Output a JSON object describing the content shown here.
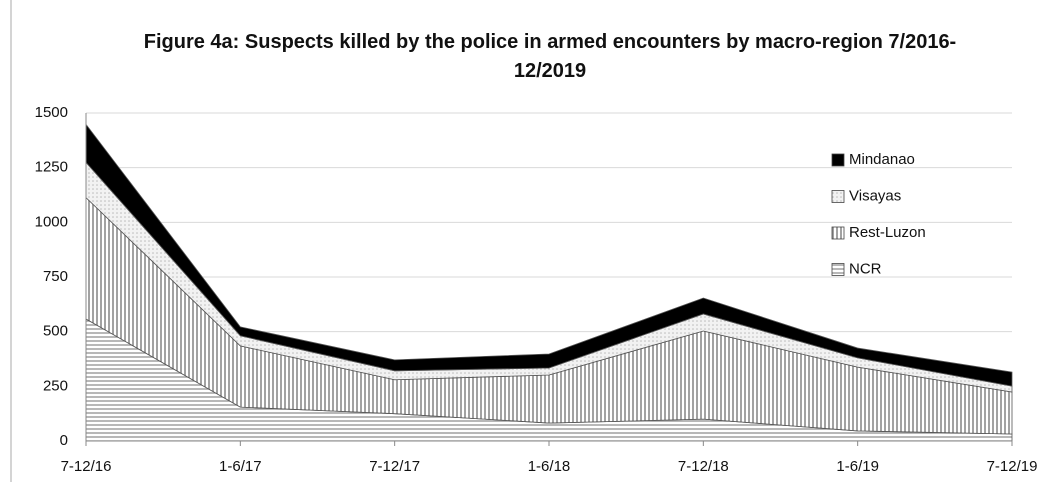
{
  "chart_data": {
    "type": "stacked_area",
    "title": "Figure 4a: Suspects killed by the police in armed encounters by macro-region 7/2016-12/2019",
    "categories": [
      "7-12/16",
      "1-6/17",
      "7-12/17",
      "1-6/18",
      "7-12/18",
      "1-6/19",
      "7-12/19"
    ],
    "series": [
      {
        "name": "NCR",
        "color": "#9a9a9a",
        "pattern": "horizontal",
        "values": [
          558,
          155,
          125,
          82,
          100,
          46,
          32
        ]
      },
      {
        "name": "Rest-Luzon",
        "color": "#8a8a8a",
        "pattern": "vertical",
        "values": [
          555,
          280,
          155,
          220,
          403,
          292,
          192
        ]
      },
      {
        "name": "Visayas",
        "color": "#c8c8c8",
        "pattern": "dots",
        "values": [
          161,
          46,
          41,
          32,
          78,
          42,
          27
        ]
      },
      {
        "name": "Mindanao",
        "color": "#000000",
        "pattern": "solid",
        "values": [
          174,
          41,
          50,
          64,
          73,
          45,
          64
        ]
      }
    ],
    "ylim": [
      0,
      1500
    ],
    "yticks": [
      0,
      250,
      500,
      750,
      1000,
      1250,
      1500
    ],
    "grid": true,
    "legend": "upper right"
  }
}
